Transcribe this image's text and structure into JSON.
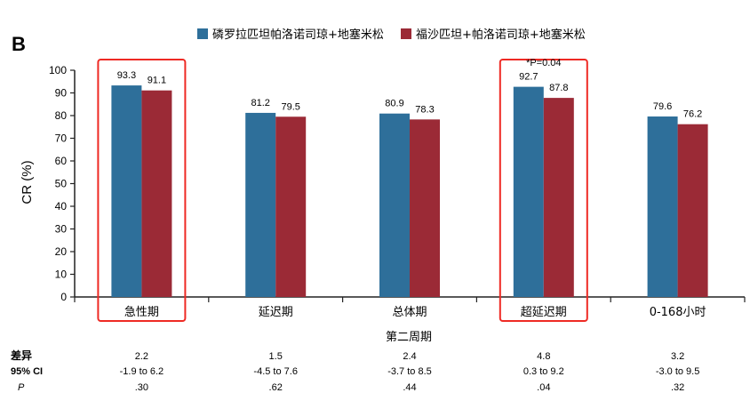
{
  "panel_label": "B",
  "colors": {
    "series1": "#2e6f9a",
    "series2": "#9b2a36",
    "highlight": "#ee2a24",
    "axis": "#222222"
  },
  "chart_data": {
    "type": "bar",
    "title": "",
    "xlabel": "第二周期",
    "ylabel": "CR (%)",
    "ylim": [
      0,
      100
    ],
    "yticks": [
      0,
      10,
      20,
      30,
      40,
      50,
      60,
      70,
      80,
      90,
      100
    ],
    "categories": [
      "急性期",
      "延迟期",
      "总体期",
      "超延迟期",
      "0-168小时"
    ],
    "series": [
      {
        "name": "磷罗拉匹坦帕洛诺司琼+地塞米松",
        "values": [
          93.3,
          81.2,
          80.9,
          92.7,
          79.6
        ]
      },
      {
        "name": "福沙匹坦+帕洛诺司琼+地塞米松",
        "values": [
          91.1,
          79.5,
          78.3,
          87.8,
          76.2
        ]
      }
    ],
    "legend_position": "top",
    "highlighted_categories": [
      0,
      3
    ],
    "annotations": [
      {
        "category_index": 3,
        "text": "*P=0.04"
      }
    ]
  },
  "table": {
    "row_labels": [
      "差异",
      "95% CI",
      "P"
    ],
    "rows": [
      [
        "2.2",
        "1.5",
        "2.4",
        "4.8",
        "3.2"
      ],
      [
        "-1.9 to 6.2",
        "-4.5 to 7.6",
        "-3.7 to 8.5",
        "0.3 to 9.2",
        "-3.0 to 9.5"
      ],
      [
        ".30",
        ".62",
        ".44",
        ".04",
        ".32"
      ]
    ]
  }
}
